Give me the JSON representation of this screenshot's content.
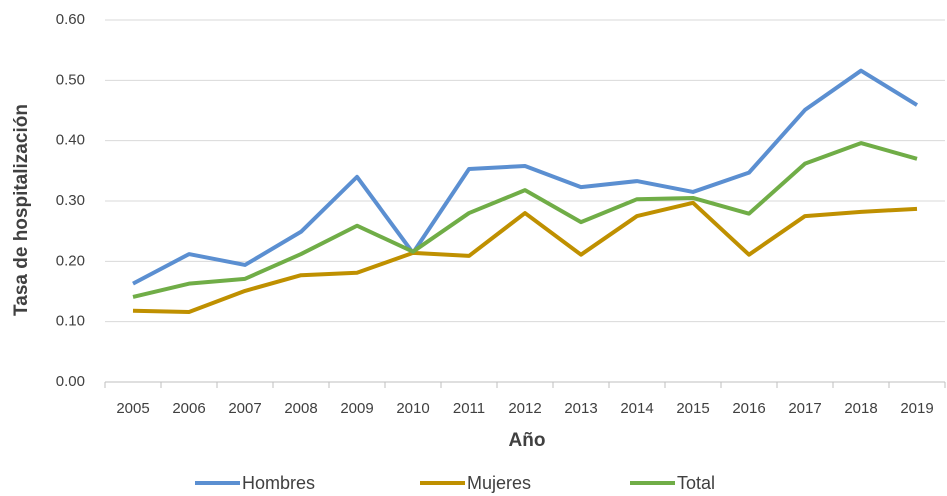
{
  "chart_data": {
    "type": "line",
    "x_label": "Año",
    "y_label": "Tasa de hospitalización",
    "categories": [
      "2005",
      "2006",
      "2007",
      "2008",
      "2009",
      "2010",
      "2011",
      "2012",
      "2013",
      "2014",
      "2015",
      "2016",
      "2017",
      "2018",
      "2019"
    ],
    "series": [
      {
        "name": "Hombres",
        "color": "#5b8fd1",
        "values": [
          0.163,
          0.212,
          0.194,
          0.249,
          0.34,
          0.214,
          0.353,
          0.358,
          0.323,
          0.333,
          0.315,
          0.347,
          0.451,
          0.516,
          0.459
        ]
      },
      {
        "name": "Mujeres",
        "color": "#bf9000",
        "values": [
          0.118,
          0.116,
          0.151,
          0.177,
          0.181,
          0.214,
          0.209,
          0.28,
          0.211,
          0.275,
          0.297,
          0.211,
          0.275,
          0.282,
          0.287
        ]
      },
      {
        "name": "Total",
        "color": "#70ad47",
        "values": [
          0.141,
          0.163,
          0.171,
          0.212,
          0.259,
          0.216,
          0.28,
          0.318,
          0.265,
          0.303,
          0.305,
          0.279,
          0.362,
          0.396,
          0.37
        ]
      }
    ],
    "ylim": [
      0,
      0.6
    ],
    "yticks": [
      {
        "value": 0,
        "label": "0.00"
      },
      {
        "value": 0.1,
        "label": "0.10"
      },
      {
        "value": 0.2,
        "label": "0.20"
      },
      {
        "value": 0.3,
        "label": "0.30"
      },
      {
        "value": 0.4,
        "label": "0.40"
      },
      {
        "value": 0.5,
        "label": "0.50"
      },
      {
        "value": 0.6,
        "label": "0.60"
      }
    ],
    "grid": true,
    "legend": "bottom"
  }
}
